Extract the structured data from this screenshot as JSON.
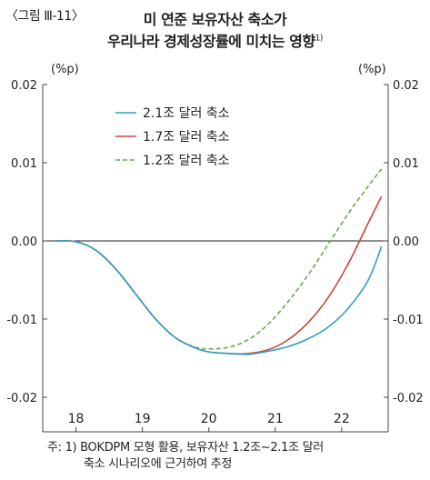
{
  "figure_label": "〈그림 Ⅲ-11〉",
  "title_line1": "미 연준 보유자산 축소가",
  "title_line2": "우리나라 경제성장률에 미치는 영향",
  "title_footnote_mark": "1)",
  "note_line1": "주: 1) BOKDPM 모형 활용, 보유자산 1.2조~2.1조 달러",
  "note_line2": "축소 시나리오에 근거하여 추정",
  "chart_data": {
    "type": "line",
    "unit_left": "(%p)",
    "unit_right": "(%p)",
    "ylim": [
      -0.02,
      0.02
    ],
    "yticks": [
      "0.02",
      "0.01",
      "0.00",
      "-0.01",
      "-0.02"
    ],
    "ytick_values": [
      0.02,
      0.01,
      0.0,
      -0.01,
      -0.02
    ],
    "xlim": [
      17.5,
      22.7
    ],
    "xticks": [
      "18",
      "19",
      "20",
      "21",
      "22"
    ],
    "xtick_values": [
      18,
      19,
      20,
      21,
      22
    ],
    "legend_position": "top-left",
    "series": [
      {
        "name": "2.1조 달러 축소",
        "color": "#2f9fc4",
        "dash": "solid",
        "x": [
          17.7,
          18.0,
          18.3,
          18.6,
          18.9,
          19.2,
          19.5,
          19.8,
          20.0,
          20.3,
          20.6,
          20.9,
          21.2,
          21.5,
          21.8,
          22.1,
          22.4,
          22.6
        ],
        "y": [
          0.0,
          -0.0001,
          -0.0012,
          -0.0036,
          -0.0068,
          -0.01,
          -0.0124,
          -0.0137,
          -0.0142,
          -0.0144,
          -0.0145,
          -0.0141,
          -0.0135,
          -0.0125,
          -0.011,
          -0.0086,
          -0.005,
          -0.0007
        ]
      },
      {
        "name": "1.7조 달러 축소",
        "color": "#c8463a",
        "dash": "solid",
        "x": [
          17.7,
          18.0,
          18.3,
          18.6,
          18.9,
          19.2,
          19.5,
          19.8,
          20.0,
          20.3,
          20.6,
          20.9,
          21.2,
          21.5,
          21.8,
          22.1,
          22.4,
          22.6
        ],
        "y": [
          0.0,
          -0.0001,
          -0.0012,
          -0.0036,
          -0.0068,
          -0.01,
          -0.0124,
          -0.0137,
          -0.0142,
          -0.0144,
          -0.0144,
          -0.0139,
          -0.0126,
          -0.0104,
          -0.0072,
          -0.0029,
          0.0023,
          0.0057
        ]
      },
      {
        "name": "1.2조 달러 축소",
        "color": "#6aa84f",
        "dash": "dashed",
        "x": [
          17.7,
          18.0,
          18.3,
          18.6,
          18.9,
          19.2,
          19.5,
          19.8,
          20.0,
          20.3,
          20.6,
          20.9,
          21.2,
          21.5,
          21.8,
          22.1,
          22.4,
          22.6
        ],
        "y": [
          0.0,
          -0.0001,
          -0.0012,
          -0.0036,
          -0.0068,
          -0.01,
          -0.0124,
          -0.0136,
          -0.0138,
          -0.0136,
          -0.0126,
          -0.0106,
          -0.0077,
          -0.0043,
          -0.0004,
          0.0035,
          0.007,
          0.0092
        ]
      }
    ]
  }
}
